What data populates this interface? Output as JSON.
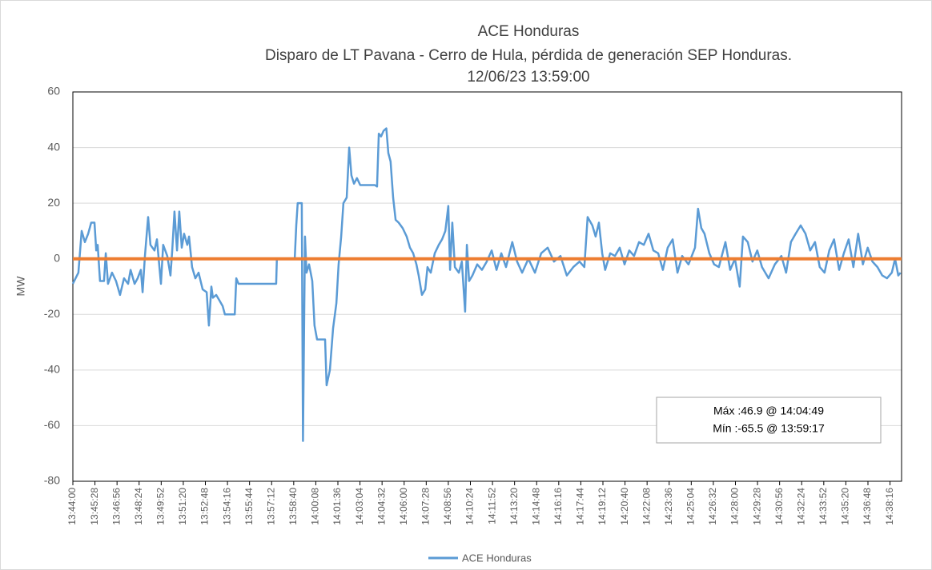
{
  "chart_data": {
    "type": "line",
    "title": "ACE Honduras",
    "subtitle": [
      "Disparo de LT Pavana - Cerro de Hula, pérdida de generación SEP Honduras.",
      "12/06/23 13:59:00"
    ],
    "y_label": "MW",
    "annotations": [
      "Máx :46.9 @ 14:04:49",
      "Mín :-65.5 @ 13:59:17"
    ],
    "ylim": [
      -80,
      60
    ],
    "yticks": [
      -80,
      -60,
      -40,
      -20,
      0,
      20,
      40,
      60
    ],
    "grid": true,
    "xlim": [
      "13:44:00",
      "14:39:02"
    ],
    "xticks": [
      "13:44:00",
      "13:45:28",
      "13:46:56",
      "13:48:24",
      "13:49:52",
      "13:51:20",
      "13:52:48",
      "13:54:16",
      "13:55:44",
      "13:57:12",
      "13:58:40",
      "14:00:08",
      "14:01:36",
      "14:03:04",
      "14:04:32",
      "14:06:00",
      "14:07:28",
      "14:08:56",
      "14:10:24",
      "14:11:52",
      "14:13:20",
      "14:14:48",
      "14:16:16",
      "14:17:44",
      "14:19:12",
      "14:20:40",
      "14:22:08",
      "14:23:36",
      "14:25:04",
      "14:26:32",
      "14:28:00",
      "14:29:28",
      "14:30:56",
      "14:32:24",
      "14:33:52",
      "14:35:20",
      "14:36:48",
      "14:38:16"
    ],
    "reference_line": {
      "value": 0,
      "color": "#ed7d31"
    },
    "legend": "bottom",
    "x": [
      "13:44:00",
      "13:44:11",
      "13:44:22",
      "13:44:35",
      "13:44:48",
      "13:45:01",
      "13:45:13",
      "13:45:26",
      "13:45:33",
      "13:45:39",
      "13:45:48",
      "13:46:04",
      "13:46:11",
      "13:46:20",
      "13:46:36",
      "13:46:52",
      "13:47:08",
      "13:47:24",
      "13:47:40",
      "13:47:50",
      "13:48:06",
      "13:48:18",
      "13:48:31",
      "13:48:38",
      "13:48:47",
      "13:49:00",
      "13:49:09",
      "13:49:25",
      "13:49:35",
      "13:49:51",
      "13:50:00",
      "13:50:16",
      "13:50:29",
      "13:50:36",
      "13:50:45",
      "13:50:55",
      "13:51:04",
      "13:51:14",
      "13:51:23",
      "13:51:36",
      "13:51:43",
      "13:51:55",
      "13:52:08",
      "13:52:21",
      "13:52:37",
      "13:52:53",
      "13:53:02",
      "13:53:12",
      "13:53:18",
      "13:53:31",
      "13:53:44",
      "13:53:57",
      "13:54:06",
      "13:54:45",
      "13:54:51",
      "13:55:00",
      "13:57:30",
      "13:57:33",
      "13:58:44",
      "13:58:50",
      "13:58:56",
      "13:59:12",
      "13:59:17",
      "13:59:25",
      "13:59:31",
      "13:59:41",
      "13:59:54",
      "14:00:03",
      "14:00:13",
      "14:00:45",
      "14:00:51",
      "14:01:04",
      "14:01:17",
      "14:01:30",
      "14:01:39",
      "14:01:49",
      "14:01:58",
      "14:02:11",
      "14:02:21",
      "14:02:30",
      "14:02:40",
      "14:02:52",
      "14:03:05",
      "14:04:03",
      "14:04:12",
      "14:04:19",
      "14:04:28",
      "14:04:38",
      "14:04:49",
      "14:04:57",
      "14:05:06",
      "14:05:16",
      "14:05:26",
      "14:05:38",
      "14:05:54",
      "14:06:10",
      "14:06:23",
      "14:06:36",
      "14:06:49",
      "14:06:58",
      "14:07:11",
      "14:07:24",
      "14:07:33",
      "14:07:46",
      "14:08:02",
      "14:08:18",
      "14:08:31",
      "14:08:44",
      "14:08:56",
      "14:09:03",
      "14:09:12",
      "14:09:22",
      "14:09:38",
      "14:09:50",
      "14:10:03",
      "14:10:10",
      "14:10:19",
      "14:10:32",
      "14:10:51",
      "14:11:10",
      "14:11:29",
      "14:11:49",
      "14:12:08",
      "14:12:27",
      "14:12:46",
      "14:13:11",
      "14:13:30",
      "14:13:50",
      "14:14:15",
      "14:14:41",
      "14:15:06",
      "14:15:32",
      "14:15:57",
      "14:16:23",
      "14:16:48",
      "14:17:14",
      "14:17:39",
      "14:17:58",
      "14:18:11",
      "14:18:30",
      "14:18:43",
      "14:18:56",
      "14:19:09",
      "14:19:21",
      "14:19:41",
      "14:20:00",
      "14:20:19",
      "14:20:38",
      "14:20:57",
      "14:21:16",
      "14:21:36",
      "14:21:55",
      "14:22:14",
      "14:22:33",
      "14:22:52",
      "14:23:11",
      "14:23:30",
      "14:23:50",
      "14:24:09",
      "14:24:28",
      "14:24:53",
      "14:25:19",
      "14:25:31",
      "14:25:44",
      "14:25:57",
      "14:26:16",
      "14:26:35",
      "14:26:54",
      "14:27:20",
      "14:27:39",
      "14:27:58",
      "14:28:17",
      "14:28:30",
      "14:28:49",
      "14:29:08",
      "14:29:27",
      "14:29:46",
      "14:30:12",
      "14:30:37",
      "14:31:03",
      "14:31:22",
      "14:31:41",
      "14:32:00",
      "14:32:20",
      "14:32:39",
      "14:32:58",
      "14:33:17",
      "14:33:36",
      "14:33:55",
      "14:34:14",
      "14:34:33",
      "14:34:53",
      "14:35:12",
      "14:35:31",
      "14:35:50",
      "14:36:09",
      "14:36:28",
      "14:36:47",
      "14:37:06",
      "14:37:26",
      "14:37:45",
      "14:38:04",
      "14:38:23",
      "14:38:36",
      "14:38:49",
      "14:38:58"
    ],
    "series": [
      {
        "name": "ACE Honduras",
        "color": "#5b9bd5",
        "values": [
          -9,
          -7,
          -5,
          10,
          6,
          9,
          13,
          13,
          3,
          5,
          -8,
          -8,
          2,
          -9,
          -5,
          -8,
          -13,
          -7,
          -9,
          -4,
          -9,
          -7,
          -4,
          -12,
          1,
          15,
          5,
          3,
          7,
          -9,
          5,
          1,
          -6,
          3,
          17,
          3,
          17,
          4,
          9,
          5,
          8,
          -3,
          -7,
          -5,
          -11,
          -12,
          -24,
          -10,
          -14,
          -13,
          -15,
          -17,
          -20,
          -20,
          -7,
          -9,
          -9,
          0,
          0,
          12,
          20,
          20,
          -65.5,
          8,
          -5,
          -2,
          -8,
          -24,
          -29,
          -29,
          -45.5,
          -40,
          -25,
          -16,
          -2,
          8,
          20,
          22,
          40,
          30,
          27,
          29,
          26.5,
          26.5,
          26,
          45,
          44,
          46,
          46.9,
          38,
          35,
          22,
          14,
          13,
          11,
          8,
          4,
          2,
          -2,
          -6,
          -13,
          -11,
          -3,
          -5,
          2,
          5,
          7,
          10,
          19,
          -4,
          13,
          -3,
          -5,
          -1,
          -19,
          5,
          -8,
          -6,
          -2,
          -4,
          -1,
          3,
          -4,
          2,
          -3,
          6,
          -1,
          -5,
          0,
          -5,
          2,
          4,
          -1,
          1,
          -6,
          -3,
          -1,
          -3,
          15,
          12,
          8,
          13,
          2,
          -4,
          2,
          1,
          4,
          -2,
          3,
          1,
          6,
          5,
          9,
          3,
          2,
          -4,
          4,
          7,
          -5,
          1,
          -2,
          4,
          18,
          11,
          9,
          2,
          -2,
          -3,
          6,
          -4,
          0,
          -10,
          8,
          6,
          -1,
          3,
          -3,
          -7,
          -2,
          1,
          -5,
          6,
          9,
          12,
          9,
          3,
          6,
          -3,
          -5,
          3,
          7,
          -4,
          2,
          7,
          -3,
          9,
          -2,
          4,
          -1,
          -3,
          -6,
          -7,
          -5,
          0,
          -6,
          -5
        ]
      }
    ]
  }
}
